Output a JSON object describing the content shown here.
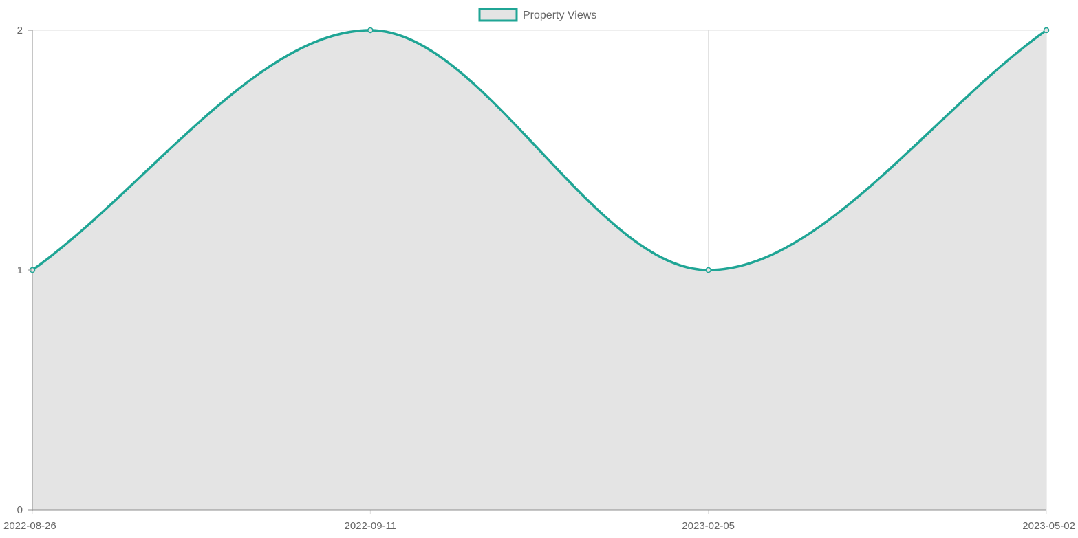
{
  "chart_data": {
    "type": "area",
    "categories": [
      "2022-08-26",
      "2022-09-11",
      "2023-02-05",
      "2023-05-02"
    ],
    "series": [
      {
        "name": "Property Views",
        "values": [
          1,
          2,
          1,
          2
        ]
      }
    ],
    "yticks": [
      "0",
      "1",
      "2"
    ],
    "ylim": [
      0,
      2
    ],
    "grid": true,
    "legend": "top",
    "colors": {
      "line": "#1fa595",
      "fill": "#e4e4e4",
      "grid": "#dcdcdc",
      "axis": "#8c8c8c"
    }
  }
}
